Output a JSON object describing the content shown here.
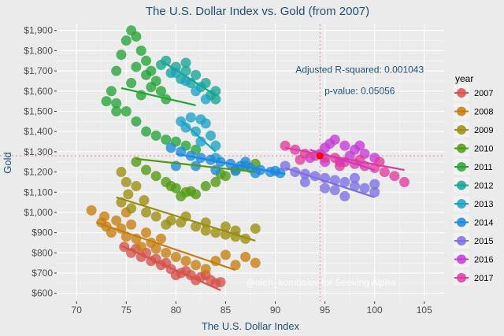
{
  "chart_data": {
    "type": "scatter",
    "title": "The U.S. Dollar Index vs. Gold (from 2007)",
    "xlabel": "The U.S. Dollar Index",
    "ylabel": "Gold",
    "xlim": [
      68,
      107
    ],
    "ylim": [
      560,
      1930
    ],
    "x_ticks": [
      70,
      75,
      80,
      85,
      90,
      95,
      100,
      105
    ],
    "x_tick_labels": [
      "70",
      "75",
      "80",
      "85",
      "90",
      "95",
      "100",
      "105"
    ],
    "y_ticks": [
      600,
      700,
      800,
      900,
      1000,
      1100,
      1200,
      1300,
      1400,
      1500,
      1600,
      1700,
      1800,
      1900
    ],
    "y_tick_labels": [
      "$600",
      "$700",
      "$800",
      "$900",
      "$1,000",
      "$1,100",
      "$1,200",
      "$1,300",
      "$1,400",
      "$1,500",
      "$1,600",
      "$1,700",
      "$1,800",
      "$1,900"
    ],
    "grid": true,
    "legend": {
      "title": "year",
      "position": "right",
      "entries": [
        "2007",
        "2008",
        "2009",
        "2010",
        "2011",
        "2012",
        "2013",
        "2014",
        "2015",
        "2016",
        "2017"
      ]
    },
    "series": [
      {
        "name": "2007",
        "color": "#d6524a",
        "points": [
          [
            74.8,
            830
          ],
          [
            75.5,
            800
          ],
          [
            76.5,
            780
          ],
          [
            77.5,
            760
          ],
          [
            78.5,
            740
          ],
          [
            79.5,
            720
          ],
          [
            80.5,
            700
          ],
          [
            81.5,
            690
          ],
          [
            82.5,
            680
          ],
          [
            83.5,
            665
          ],
          [
            84.5,
            655
          ],
          [
            77,
            800
          ],
          [
            79,
            750
          ],
          [
            81,
            710
          ],
          [
            83,
            690
          ],
          [
            80,
            690
          ],
          [
            82,
            665
          ],
          [
            84,
            650
          ],
          [
            76,
            820
          ],
          [
            78,
            770
          ]
        ],
        "fit": [
          [
            74.5,
            835
          ],
          [
            84.5,
            615
          ]
        ]
      },
      {
        "name": "2008",
        "color": "#c77c0e",
        "points": [
          [
            71.5,
            1010
          ],
          [
            72.5,
            950
          ],
          [
            73,
            930
          ],
          [
            73.5,
            900
          ],
          [
            74,
            960
          ],
          [
            74.5,
            920
          ],
          [
            75,
            880
          ],
          [
            75.5,
            940
          ],
          [
            76,
            870
          ],
          [
            77,
            900
          ],
          [
            77.5,
            850
          ],
          [
            78,
            820
          ],
          [
            78.5,
            870
          ],
          [
            79,
            800
          ],
          [
            80,
            780
          ],
          [
            81,
            760
          ],
          [
            82,
            740
          ],
          [
            83,
            720
          ],
          [
            84,
            760
          ],
          [
            85,
            790
          ],
          [
            86,
            740
          ],
          [
            87,
            780
          ],
          [
            88,
            750
          ],
          [
            75,
            1000
          ],
          [
            72.8,
            980
          ],
          [
            76.5,
            830
          ]
        ],
        "fit": [
          [
            72,
            950
          ],
          [
            86,
            715
          ]
        ]
      },
      {
        "name": "2009",
        "color": "#9b8d10",
        "points": [
          [
            74.5,
            1200
          ],
          [
            75,
            1150
          ],
          [
            76,
            1130
          ],
          [
            74.5,
            1050
          ],
          [
            75.5,
            1020
          ],
          [
            77,
            1000
          ],
          [
            78,
            980
          ],
          [
            79.5,
            960
          ],
          [
            80.5,
            950
          ],
          [
            82,
            930
          ],
          [
            83,
            910
          ],
          [
            84,
            900
          ],
          [
            85,
            890
          ],
          [
            86,
            880
          ],
          [
            87,
            870
          ],
          [
            88,
            920
          ],
          [
            79,
            940
          ],
          [
            81,
            980
          ],
          [
            83,
            950
          ],
          [
            85,
            930
          ],
          [
            86,
            910
          ],
          [
            75.2,
            1090
          ],
          [
            76.8,
            1060
          ]
        ],
        "fit": [
          [
            74,
            1075
          ],
          [
            88,
            860
          ]
        ]
      },
      {
        "name": "2010",
        "color": "#4f9a11",
        "points": [
          [
            76,
            1250
          ],
          [
            77,
            1210
          ],
          [
            78,
            1180
          ],
          [
            79,
            1150
          ],
          [
            80,
            1120
          ],
          [
            81,
            1100
          ],
          [
            82,
            1090
          ],
          [
            83,
            1130
          ],
          [
            84,
            1150
          ],
          [
            85,
            1180
          ],
          [
            86,
            1210
          ],
          [
            87,
            1230
          ],
          [
            88,
            1240
          ],
          [
            80.5,
            1080
          ],
          [
            81.5,
            1105
          ],
          [
            84.5,
            1190
          ],
          [
            79.5,
            1130
          ]
        ],
        "fit": [
          [
            76,
            1265
          ],
          [
            88,
            1200
          ]
        ]
      },
      {
        "name": "2011",
        "color": "#23a337",
        "points": [
          [
            73.5,
            1600
          ],
          [
            74,
            1700
          ],
          [
            74.5,
            1780
          ],
          [
            75,
            1850
          ],
          [
            75.5,
            1900
          ],
          [
            76,
            1870
          ],
          [
            76.5,
            1800
          ],
          [
            77,
            1750
          ],
          [
            77.5,
            1700
          ],
          [
            78,
            1650
          ],
          [
            78.5,
            1600
          ],
          [
            79,
            1560
          ],
          [
            74,
            1540
          ],
          [
            75,
            1500
          ],
          [
            76,
            1450
          ],
          [
            77,
            1400
          ],
          [
            78,
            1380
          ],
          [
            79,
            1360
          ],
          [
            80,
            1350
          ],
          [
            81,
            1330
          ],
          [
            82,
            1310
          ],
          [
            73,
            1550
          ],
          [
            74,
            1500
          ],
          [
            76.5,
            1580
          ],
          [
            77.5,
            1620
          ],
          [
            75.5,
            1640
          ],
          [
            76,
            1720
          ],
          [
            77,
            1680
          ]
        ],
        "fit": [
          [
            74.5,
            1615
          ],
          [
            82,
            1530
          ]
        ]
      },
      {
        "name": "2012",
        "color": "#17a494",
        "points": [
          [
            79,
            1750
          ],
          [
            80,
            1720
          ],
          [
            81,
            1700
          ],
          [
            82,
            1680
          ],
          [
            83,
            1640
          ],
          [
            84,
            1600
          ],
          [
            79.5,
            1690
          ],
          [
            80.5,
            1660
          ],
          [
            81.5,
            1640
          ],
          [
            82.5,
            1620
          ],
          [
            83.5,
            1580
          ],
          [
            84,
            1560
          ],
          [
            78.5,
            1730
          ],
          [
            81,
            1740
          ]
        ],
        "fit": [
          [
            79,
            1735
          ],
          [
            84,
            1580
          ]
        ]
      },
      {
        "name": "2013",
        "color": "#1ba2c7",
        "points": [
          [
            80,
            1690
          ],
          [
            81,
            1650
          ],
          [
            82,
            1600
          ],
          [
            83,
            1560
          ],
          [
            80.5,
            1450
          ],
          [
            81,
            1420
          ],
          [
            82,
            1400
          ],
          [
            82.5,
            1460
          ],
          [
            83,
            1440
          ],
          [
            83.5,
            1380
          ],
          [
            84,
            1330
          ],
          [
            84,
            1270
          ],
          [
            82.5,
            1350
          ],
          [
            81.5,
            1470
          ]
        ],
        "fit": [
          [
            80.5,
            1455
          ],
          [
            84,
            1300
          ]
        ]
      },
      {
        "name": "2014",
        "color": "#1b88df",
        "points": [
          [
            79.5,
            1320
          ],
          [
            80.5,
            1300
          ],
          [
            81.5,
            1280
          ],
          [
            82.5,
            1270
          ],
          [
            83.5,
            1260
          ],
          [
            84.5,
            1250
          ],
          [
            85.5,
            1240
          ],
          [
            86.5,
            1230
          ],
          [
            87.5,
            1220
          ],
          [
            88.5,
            1210
          ],
          [
            89.5,
            1200
          ],
          [
            90.5,
            1195
          ],
          [
            80,
            1230
          ],
          [
            82,
            1230
          ],
          [
            84,
            1210
          ],
          [
            86,
            1205
          ],
          [
            88,
            1195
          ],
          [
            90,
            1205
          ],
          [
            87,
            1250
          ]
        ],
        "fit": [
          [
            80,
            1290
          ],
          [
            91,
            1190
          ]
        ]
      },
      {
        "name": "2015",
        "color": "#7b6ee6",
        "points": [
          [
            91,
            1230
          ],
          [
            92,
            1200
          ],
          [
            93,
            1190
          ],
          [
            94,
            1180
          ],
          [
            95,
            1170
          ],
          [
            96,
            1160
          ],
          [
            97,
            1150
          ],
          [
            98,
            1130
          ],
          [
            99,
            1120
          ],
          [
            100,
            1100
          ],
          [
            97,
            1080
          ],
          [
            95,
            1120
          ],
          [
            93,
            1150
          ],
          [
            98,
            1170
          ],
          [
            100,
            1140
          ],
          [
            96,
            1110
          ]
        ],
        "fit": [
          [
            91,
            1220
          ],
          [
            100,
            1075
          ]
        ]
      },
      {
        "name": "2016",
        "color": "#c538d7",
        "points": [
          [
            93.5,
            1270
          ],
          [
            94.5,
            1290
          ],
          [
            95,
            1320
          ],
          [
            95.5,
            1340
          ],
          [
            96,
            1360
          ],
          [
            97,
            1330
          ],
          [
            98,
            1310
          ],
          [
            99,
            1290
          ],
          [
            100,
            1270
          ],
          [
            96.5,
            1250
          ],
          [
            95,
            1250
          ],
          [
            97.5,
            1280
          ],
          [
            98.5,
            1330
          ]
        ],
        "fit": [
          [
            93.5,
            1310
          ],
          [
            100,
            1210
          ]
        ]
      },
      {
        "name": "2017",
        "color": "#e03a9e",
        "points": [
          [
            91,
            1330
          ],
          [
            92,
            1310
          ],
          [
            93,
            1290
          ],
          [
            94,
            1280
          ],
          [
            95,
            1270
          ],
          [
            96,
            1270
          ],
          [
            97,
            1250
          ],
          [
            98,
            1240
          ],
          [
            99,
            1230
          ],
          [
            100,
            1220
          ],
          [
            101,
            1200
          ],
          [
            102,
            1180
          ],
          [
            103,
            1150
          ],
          [
            100.5,
            1250
          ],
          [
            98.5,
            1260
          ],
          [
            92.5,
            1260
          ],
          [
            96.5,
            1230
          ]
        ],
        "fit": [
          [
            91,
            1320
          ],
          [
            103,
            1210
          ]
        ]
      }
    ],
    "highlight_point": {
      "x": 94.5,
      "y": 1280,
      "color": "#ff0000"
    },
    "reference_lines": {
      "x": 94.5,
      "y": 1280
    },
    "annotations": [
      {
        "text": "Adjusted R-squared: 0.001043",
        "x": 98.5,
        "y": 1690
      },
      {
        "text": "p-value: 0.05056",
        "x": 98.5,
        "y": 1585
      }
    ],
    "watermark": "@oleh_kombaiev for Seeking Alpha"
  }
}
